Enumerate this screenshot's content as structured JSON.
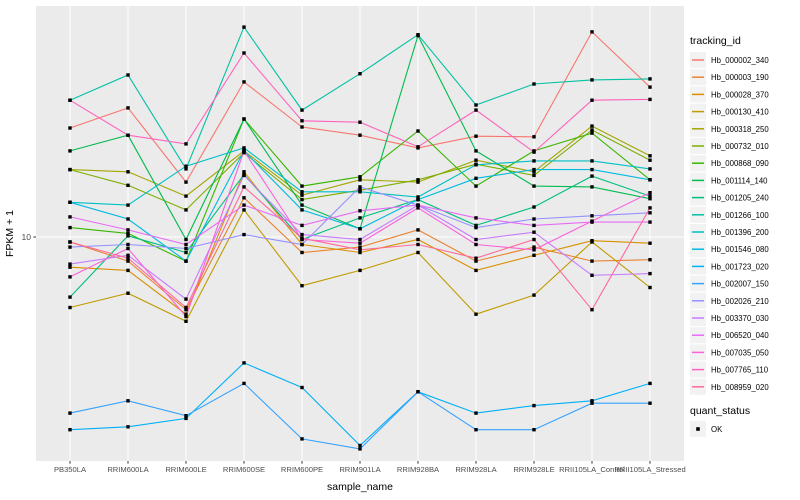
{
  "chart_data": {
    "type": "line",
    "title": "",
    "xlabel": "sample_name",
    "ylabel": "FPKM + 1",
    "y_scale": "log10",
    "y_ticks": [
      10
    ],
    "y_tick_label": "10",
    "ylim": [
      1.7,
      60
    ],
    "grid": "vertical-category-lines-and-major-y",
    "legend_position": "right",
    "legend_title": "tracking_id",
    "panel_bg": "#EBEBEB",
    "grid_color": "#FFFFFF",
    "point_color": "#000000",
    "point_shape": "square",
    "categories": [
      "PB350LA",
      "RRIM600LA",
      "RRIM600LE",
      "RRIM600SE",
      "RRIM600PE",
      "RRIM901LA",
      "RRIM928BA",
      "RRIM928LA",
      "RRIM928LE",
      "RRII105LA_Control",
      "RRII105LA_Stressed"
    ],
    "series": [
      {
        "name": "Hb_000002_340",
        "color": "#F8766D",
        "values": [
          24.5,
          28.9,
          15.7,
          35.8,
          24.7,
          23.1,
          20.8,
          22.9,
          22.8,
          54.0,
          34.3
        ]
      },
      {
        "name": "Hb_000003_190",
        "color": "#EA8331",
        "values": [
          9.6,
          8.2,
          5.5,
          13.8,
          8.8,
          9.2,
          10.6,
          8.2,
          9.2,
          8.2,
          8.3
        ]
      },
      {
        "name": "Hb_000028_370",
        "color": "#D89000",
        "values": [
          7.8,
          7.6,
          5.3,
          17.1,
          9.4,
          8.8,
          9.8,
          7.6,
          8.6,
          9.7,
          9.5
        ]
      },
      {
        "name": "Hb_000130_410",
        "color": "#C09B00",
        "values": [
          5.6,
          6.3,
          5.0,
          12.5,
          6.7,
          7.6,
          8.8,
          5.3,
          6.2,
          9.6,
          6.6
        ]
      },
      {
        "name": "Hb_000318_250",
        "color": "#A3A500",
        "values": [
          17.4,
          17.1,
          14.0,
          20.3,
          14.1,
          16.0,
          15.7,
          18.8,
          17.1,
          24.9,
          19.5
        ]
      },
      {
        "name": "Hb_000732_010",
        "color": "#7CAE00",
        "values": [
          17.4,
          15.3,
          12.5,
          20.0,
          13.6,
          14.7,
          16.0,
          18.2,
          16.6,
          24.1,
          18.8
        ]
      },
      {
        "name": "Hb_000868_090",
        "color": "#39B600",
        "values": [
          10.8,
          10.3,
          8.2,
          26.4,
          15.2,
          16.4,
          23.9,
          15.2,
          20.3,
          23.5,
          16.0
        ]
      },
      {
        "name": "Hb_001114_140",
        "color": "#00BB4E",
        "values": [
          20.3,
          23.1,
          9.8,
          26.4,
          13.0,
          10.7,
          52.4,
          20.3,
          15.2,
          15.1,
          13.7
        ]
      },
      {
        "name": "Hb_001205_240",
        "color": "#00BF7D",
        "values": [
          6.1,
          10.1,
          8.8,
          16.7,
          9.8,
          11.7,
          13.6,
          11.0,
          12.8,
          16.5,
          14.0
        ]
      },
      {
        "name": "Hb_001266_100",
        "color": "#00C1A3",
        "values": [
          30.8,
          37.9,
          17.5,
          56.2,
          28.4,
          38.3,
          52.8,
          29.6,
          35.2,
          36.4,
          36.7
        ]
      },
      {
        "name": "Hb_001396_200",
        "color": "#00BFC4",
        "values": [
          13.3,
          13.0,
          17.9,
          20.8,
          14.5,
          14.5,
          13.9,
          18.1,
          18.7,
          18.7,
          17.5
        ]
      },
      {
        "name": "Hb_001546_080",
        "color": "#00BAE0",
        "values": [
          13.3,
          11.6,
          8.2,
          20.3,
          12.5,
          10.7,
          13.6,
          16.2,
          17.4,
          17.4,
          16.0
        ]
      },
      {
        "name": "Hb_001723_020",
        "color": "#00B0F6",
        "values": [
          2.05,
          2.1,
          2.25,
          3.55,
          2.9,
          1.8,
          2.8,
          2.35,
          2.5,
          2.6,
          3.0
        ]
      },
      {
        "name": "Hb_002007_150",
        "color": "#35A2FF",
        "values": [
          2.35,
          2.6,
          2.3,
          3.0,
          1.9,
          1.75,
          2.8,
          2.05,
          2.05,
          2.55,
          2.55
        ]
      },
      {
        "name": "Hb_002026_210",
        "color": "#9590FF",
        "values": [
          9.2,
          9.4,
          9.1,
          10.2,
          9.4,
          15.1,
          13.0,
          10.8,
          11.6,
          11.9,
          12.2
        ]
      },
      {
        "name": "Hb_003370_030",
        "color": "#C77CFF",
        "values": [
          8.0,
          8.6,
          6.0,
          16.6,
          10.2,
          9.8,
          13.0,
          9.8,
          10.4,
          7.3,
          7.4
        ]
      },
      {
        "name": "Hb_006520_040",
        "color": "#E76BF3",
        "values": [
          11.8,
          10.6,
          9.4,
          13.0,
          11.0,
          12.4,
          13.0,
          11.7,
          11.0,
          11.3,
          11.3
        ]
      },
      {
        "name": "Hb_007035_050",
        "color": "#FA62DB",
        "values": [
          7.2,
          9.1,
          5.2,
          20.3,
          9.8,
          9.5,
          12.7,
          9.4,
          9.0,
          11.4,
          14.4
        ]
      },
      {
        "name": "Hb_007765_110",
        "color": "#FF62BC",
        "values": [
          30.8,
          23.1,
          21.5,
          45.4,
          26.0,
          25.7,
          21.0,
          28.4,
          20.1,
          30.8,
          31.0
        ]
      },
      {
        "name": "Hb_008959_020",
        "color": "#FF6A98",
        "values": [
          9.6,
          8.4,
          5.6,
          15.1,
          9.9,
          9.0,
          9.4,
          8.4,
          9.8,
          5.5,
          12.7
        ]
      }
    ],
    "quant_legend": {
      "title": "quant_status",
      "items": [
        {
          "label": "OK",
          "marker": "square",
          "color": "#000000"
        }
      ]
    }
  }
}
